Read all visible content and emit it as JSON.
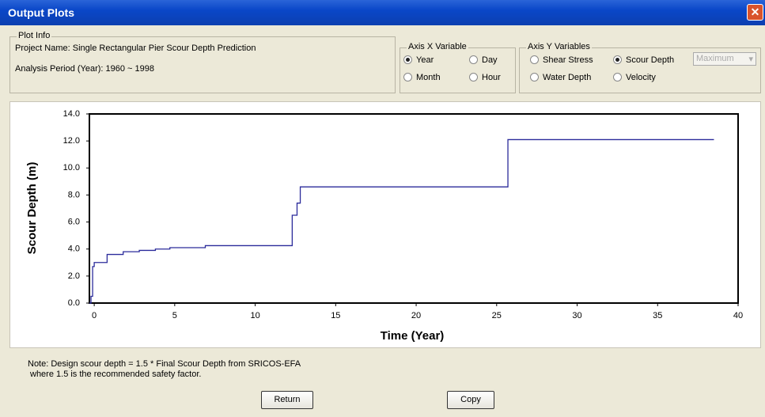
{
  "window": {
    "title": "Output Plots",
    "plot_info": {
      "legend": "Plot Info",
      "project": "Project Name: Single Rectangular Pier Scour Depth Prediction",
      "period": "Analysis Period (Year): 1960 ~ 1998"
    },
    "axis_x": {
      "legend": "Axis X Variable",
      "options": [
        {
          "label": "Year",
          "checked": true
        },
        {
          "label": "Day",
          "checked": false
        },
        {
          "label": "Month",
          "checked": false
        },
        {
          "label": "Hour",
          "checked": false
        }
      ]
    },
    "axis_y": {
      "legend": "Axis Y Variables",
      "options": [
        {
          "label": "Shear Stress",
          "checked": false
        },
        {
          "label": "Scour Depth",
          "checked": true
        },
        {
          "label": "Water Depth",
          "checked": false
        },
        {
          "label": "Velocity",
          "checked": false
        }
      ],
      "dropdown": "Maximum"
    },
    "note": [
      "Note: Design scour depth = 1.5 * Final Scour Depth from SRICOS-EFA",
      "where 1.5 is the recommended safety factor."
    ],
    "buttons": [
      "Return",
      "Copy"
    ]
  },
  "chart_data": {
    "type": "step",
    "x_label": "Time (Year)",
    "y_label": "Scour Depth (m)",
    "x": [
      -0.3,
      -0.2,
      -0.1,
      0,
      0.8,
      1.8,
      2.8,
      3.8,
      4.7,
      6.9,
      12.3,
      12.6,
      12.8,
      25.7,
      38.5
    ],
    "values": [
      0,
      0.5,
      2.7,
      3.0,
      3.6,
      3.8,
      3.9,
      4.0,
      4.1,
      4.25,
      6.5,
      7.4,
      8.6,
      12.1,
      12.1
    ],
    "color": "#2b2b9b",
    "xlim": [
      -0.3,
      40
    ],
    "xticks": [
      0,
      5,
      10,
      15,
      20,
      25,
      30,
      35,
      40
    ],
    "ylim": [
      0,
      14
    ],
    "yticks": [
      {
        "value": 0,
        "label": "0.0"
      },
      {
        "value": 2,
        "label": "2.0"
      },
      {
        "value": 4,
        "label": "4.0"
      },
      {
        "value": 6,
        "label": "6.0"
      },
      {
        "value": 8,
        "label": "8.0"
      },
      {
        "value": 10,
        "label": "10.0"
      },
      {
        "value": 12,
        "label": "12.0"
      },
      {
        "value": 14,
        "label": "14.0"
      }
    ]
  }
}
